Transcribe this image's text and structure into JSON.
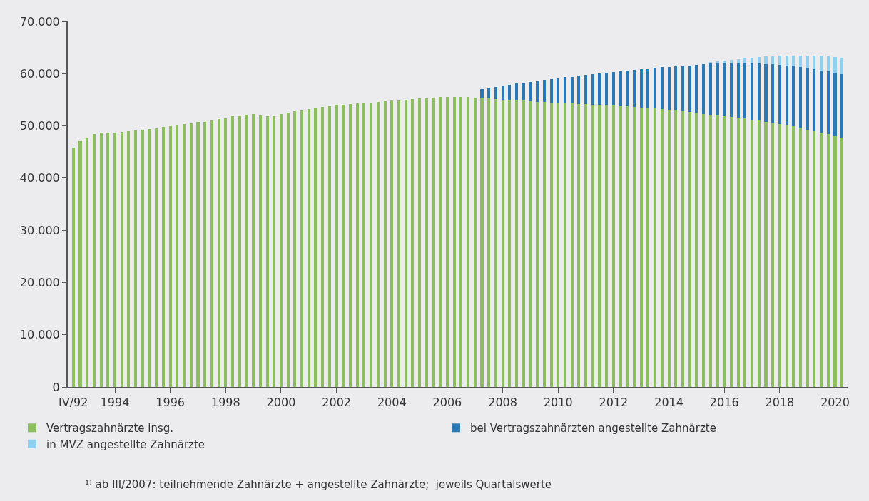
{
  "chart_data": {
    "type": "bar",
    "stacked": true,
    "categories": [
      "IV/92",
      null,
      null,
      null,
      null,
      null,
      "1994",
      null,
      null,
      null,
      null,
      null,
      null,
      null,
      "1996",
      null,
      null,
      null,
      null,
      null,
      null,
      null,
      "1998",
      null,
      null,
      null,
      null,
      null,
      null,
      null,
      "2000",
      null,
      null,
      null,
      null,
      null,
      null,
      null,
      "2002",
      null,
      null,
      null,
      null,
      null,
      null,
      null,
      "2004",
      null,
      null,
      null,
      null,
      null,
      null,
      null,
      "2006",
      null,
      null,
      null,
      null,
      null,
      null,
      null,
      "2008",
      null,
      null,
      null,
      null,
      null,
      null,
      null,
      "2010",
      null,
      null,
      null,
      null,
      null,
      null,
      null,
      "2012",
      null,
      null,
      null,
      null,
      null,
      null,
      null,
      "2014",
      null,
      null,
      null,
      null,
      null,
      null,
      null,
      "2016",
      null,
      null,
      null,
      null,
      null,
      null,
      null,
      "2018",
      null,
      null,
      null,
      null,
      null,
      null,
      null,
      "2020",
      null
    ],
    "series": [
      {
        "name": "Vertragszahnärzte insg.",
        "color": "#8cbd5e",
        "values": [
          45800,
          47100,
          47800,
          48500,
          48700,
          48700,
          48700,
          48800,
          49000,
          49100,
          49300,
          49400,
          49600,
          49800,
          50000,
          50100,
          50300,
          50500,
          50700,
          50800,
          51000,
          51300,
          51500,
          51800,
          51900,
          52100,
          52200,
          52000,
          51900,
          51900,
          52200,
          52600,
          52800,
          53000,
          53200,
          53400,
          53600,
          53800,
          54000,
          54100,
          54200,
          54300,
          54400,
          54500,
          54600,
          54700,
          54800,
          54900,
          55000,
          55100,
          55200,
          55300,
          55400,
          55500,
          55500,
          55500,
          55500,
          55500,
          55400,
          55300,
          55200,
          55100,
          55000,
          54900,
          54900,
          54800,
          54700,
          54600,
          54600,
          54500,
          54400,
          54400,
          54300,
          54200,
          54200,
          54100,
          54000,
          54000,
          53900,
          53800,
          53700,
          53600,
          53500,
          53400,
          53300,
          53200,
          53100,
          53000,
          52800,
          52700,
          52500,
          52300,
          52100,
          52000,
          51800,
          51700,
          51600,
          51400,
          51200,
          51000,
          50800,
          50600,
          50400,
          50200,
          49900,
          49600,
          49300,
          49000,
          48700,
          48400,
          48100,
          47800
        ]
      },
      {
        "name": "bei Vertragszahnärzten angestellte Zahnärzte",
        "color": "#2a78b5",
        "values": [
          null,
          null,
          null,
          null,
          null,
          null,
          null,
          null,
          null,
          null,
          null,
          null,
          null,
          null,
          null,
          null,
          null,
          null,
          null,
          null,
          null,
          null,
          null,
          null,
          null,
          null,
          null,
          null,
          null,
          null,
          null,
          null,
          null,
          null,
          null,
          null,
          null,
          null,
          null,
          null,
          null,
          null,
          null,
          null,
          null,
          null,
          null,
          null,
          null,
          null,
          null,
          null,
          null,
          null,
          null,
          null,
          null,
          null,
          null,
          1800,
          2100,
          2400,
          2700,
          3000,
          3200,
          3500,
          3700,
          4000,
          4200,
          4500,
          4700,
          4900,
          5100,
          5400,
          5500,
          5800,
          6000,
          6200,
          6400,
          6700,
          6900,
          7100,
          7300,
          7500,
          7800,
          8000,
          8200,
          8400,
          8700,
          8900,
          9200,
          9500,
          9800,
          10000,
          10200,
          10300,
          10400,
          10600,
          10700,
          10900,
          11000,
          11200,
          11300,
          11400,
          11600,
          11700,
          11800,
          11800,
          11900,
          12000,
          12100,
          12100
        ]
      },
      {
        "name": "in MVZ angestellte Zahnärzte",
        "color": "#8fd0f0",
        "values": [
          null,
          null,
          null,
          null,
          null,
          null,
          null,
          null,
          null,
          null,
          null,
          null,
          null,
          null,
          null,
          null,
          null,
          null,
          null,
          null,
          null,
          null,
          null,
          null,
          null,
          null,
          null,
          null,
          null,
          null,
          null,
          null,
          null,
          null,
          null,
          null,
          null,
          null,
          null,
          null,
          null,
          null,
          null,
          null,
          null,
          null,
          null,
          null,
          null,
          null,
          null,
          null,
          null,
          null,
          null,
          null,
          null,
          null,
          null,
          null,
          null,
          null,
          null,
          null,
          null,
          null,
          null,
          null,
          null,
          null,
          null,
          null,
          null,
          null,
          null,
          null,
          null,
          null,
          null,
          null,
          null,
          null,
          null,
          null,
          null,
          null,
          null,
          null,
          null,
          null,
          null,
          null,
          300,
          400,
          500,
          700,
          800,
          1000,
          1200,
          1300,
          1500,
          1500,
          1700,
          1800,
          2000,
          2200,
          2400,
          2600,
          2800,
          2900,
          3000,
          3100
        ]
      }
    ],
    "ylim": [
      0,
      70000
    ],
    "yticks": [
      {
        "value": 0,
        "label": "0"
      },
      {
        "value": 10000,
        "label": "10.000"
      },
      {
        "value": 20000,
        "label": "20.000"
      },
      {
        "value": 30000,
        "label": "30.000"
      },
      {
        "value": 40000,
        "label": "40.000"
      },
      {
        "value": 50000,
        "label": "50.000"
      },
      {
        "value": 60000,
        "label": "60.000"
      },
      {
        "value": 70000,
        "label": "70.000"
      }
    ],
    "grid": false,
    "legend": "bottom",
    "annotations": [
      "¹⁾ ab III/2007: teilnehmende Zahnärzte + angestellte Zahnärzte;  jeweils Quartalswerte"
    ]
  }
}
